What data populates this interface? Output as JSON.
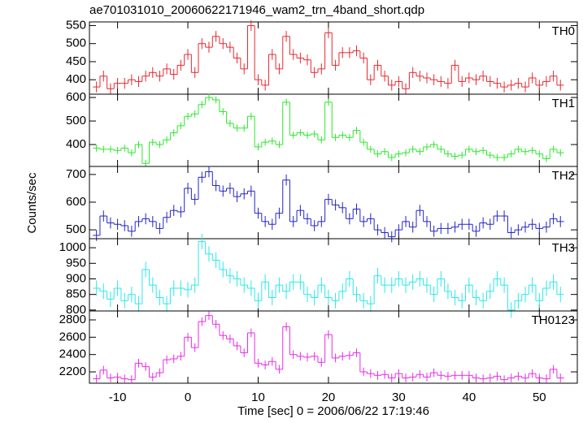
{
  "chart_data": {
    "type": "step",
    "title": "ae701031010_20060622171946_wam2_trn_4band_short.qdp",
    "xlabel": "Time [sec] 0 = 2006/06/22 17:19:46",
    "ylabel": "Counts/sec",
    "xlim": [
      -14,
      55.4
    ],
    "xticks": [
      -10,
      0,
      10,
      20,
      30,
      40,
      50
    ],
    "x": [
      -13,
      -12,
      -11,
      -10,
      -9,
      -8,
      -7,
      -6,
      -5,
      -4,
      -3,
      -2,
      -1,
      0,
      1,
      2,
      3,
      4,
      5,
      6,
      7,
      8,
      9,
      10,
      11,
      12,
      13,
      14,
      15,
      16,
      17,
      18,
      19,
      20,
      21,
      22,
      23,
      24,
      25,
      26,
      27,
      28,
      29,
      30,
      31,
      32,
      33,
      34,
      35,
      36,
      37,
      38,
      39,
      40,
      41,
      42,
      43,
      44,
      45,
      46,
      47,
      48,
      49,
      50,
      51,
      52,
      53
    ],
    "panels": [
      {
        "name": "TH0",
        "color": "#e8282e",
        "error": 15,
        "ylim": [
          360,
          560
        ],
        "yticks": [
          400,
          450,
          500,
          550
        ],
        "values": [
          380,
          410,
          375,
          390,
          390,
          400,
          395,
          410,
          420,
          410,
          430,
          415,
          440,
          470,
          420,
          500,
          490,
          520,
          500,
          490,
          460,
          430,
          550,
          400,
          385,
          470,
          430,
          520,
          470,
          460,
          455,
          420,
          430,
          530,
          440,
          475,
          475,
          480,
          460,
          400,
          440,
          410,
          385,
          395,
          375,
          420,
          410,
          405,
          400,
          395,
          390,
          440,
          395,
          405,
          400,
          410,
          395,
          390,
          380,
          385,
          390,
          380,
          405,
          385,
          395,
          410,
          385
        ]
      },
      {
        "name": "TH1",
        "color": "#2be82b",
        "error": 15,
        "ylim": [
          307,
          614
        ],
        "yticks": [
          400,
          500,
          600
        ],
        "values": [
          385,
          380,
          380,
          375,
          385,
          365,
          400,
          320,
          410,
          400,
          420,
          450,
          480,
          520,
          530,
          570,
          600,
          590,
          540,
          490,
          470,
          470,
          520,
          390,
          410,
          415,
          400,
          580,
          440,
          450,
          440,
          445,
          420,
          580,
          430,
          440,
          430,
          460,
          410,
          380,
          360,
          370,
          345,
          360,
          365,
          380,
          370,
          390,
          400,
          380,
          360,
          350,
          355,
          380,
          370,
          375,
          355,
          345,
          345,
          360,
          380,
          370,
          375,
          360,
          340,
          380,
          365
        ]
      },
      {
        "name": "TH2",
        "color": "#2424c8",
        "error": 20,
        "ylim": [
          468,
          729
        ],
        "yticks": [
          500,
          600,
          700
        ],
        "values": [
          480,
          550,
          525,
          520,
          515,
          495,
          530,
          540,
          530,
          505,
          545,
          570,
          565,
          650,
          610,
          690,
          710,
          660,
          640,
          650,
          620,
          630,
          640,
          560,
          530,
          520,
          560,
          680,
          530,
          570,
          540,
          515,
          530,
          610,
          590,
          580,
          540,
          575,
          530,
          540,
          500,
          490,
          475,
          500,
          530,
          510,
          570,
          530,
          495,
          505,
          505,
          510,
          520,
          520,
          495,
          525,
          520,
          550,
          550,
          490,
          500,
          510,
          520,
          505,
          510,
          540,
          530
        ]
      },
      {
        "name": "TH3",
        "color": "#2be8e8",
        "error": 25,
        "ylim": [
          797,
          1029
        ],
        "yticks": [
          800,
          850,
          900,
          950,
          1000
        ],
        "values": [
          870,
          860,
          835,
          870,
          830,
          850,
          820,
          930,
          880,
          840,
          820,
          870,
          870,
          865,
          880,
          1020,
          980,
          960,
          930,
          910,
          900,
          880,
          870,
          830,
          890,
          840,
          880,
          860,
          890,
          890,
          850,
          840,
          880,
          840,
          830,
          860,
          900,
          850,
          830,
          820,
          910,
          880,
          880,
          900,
          880,
          890,
          900,
          880,
          850,
          900,
          860,
          840,
          830,
          880,
          840,
          830,
          860,
          900,
          880,
          800,
          830,
          850,
          880,
          830,
          870,
          890,
          850
        ]
      },
      {
        "name": "TH0123",
        "color": "#e82be8",
        "error": 50,
        "ylim": [
          2069,
          2903
        ],
        "yticks": [
          2200,
          2400,
          2600,
          2800
        ],
        "values": [
          2120,
          2220,
          2130,
          2140,
          2120,
          2110,
          2300,
          2260,
          2140,
          2190,
          2340,
          2350,
          2380,
          2600,
          2480,
          2780,
          2850,
          2750,
          2620,
          2580,
          2500,
          2420,
          2650,
          2300,
          2280,
          2320,
          2230,
          2720,
          2400,
          2380,
          2370,
          2380,
          2310,
          2630,
          2360,
          2380,
          2390,
          2420,
          2200,
          2180,
          2160,
          2170,
          2130,
          2180,
          2130,
          2140,
          2170,
          2140,
          2190,
          2160,
          2150,
          2160,
          2160,
          2160,
          2130,
          2120,
          2130,
          2150,
          2110,
          2130,
          2150,
          2130,
          2180,
          2130,
          2120,
          2230,
          2130
        ]
      }
    ]
  }
}
